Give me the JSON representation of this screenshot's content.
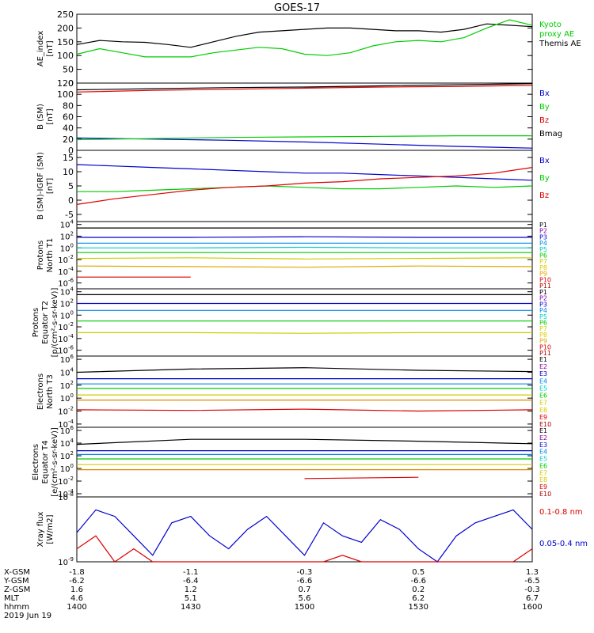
{
  "title": "GOES-17",
  "time_axis": {
    "ticks": [
      "1400",
      "1430",
      "1500",
      "1530",
      "1600"
    ],
    "minutes_range": [
      0,
      120
    ],
    "rows": [
      {
        "label": "X-GSM",
        "values": [
          "-1.8",
          "-1.1",
          "-0.3",
          "0.5",
          "1.3"
        ]
      },
      {
        "label": "Y-GSM",
        "values": [
          "-6.2",
          "-6.4",
          "-6.6",
          "-6.6",
          "-6.5"
        ]
      },
      {
        "label": "Z-GSM",
        "values": [
          "1.6",
          "1.2",
          "0.7",
          "0.2",
          "-0.3"
        ]
      },
      {
        "label": "MLT",
        "values": [
          "4.6",
          "5.1",
          "5.6",
          "6.2",
          "6.7"
        ]
      },
      {
        "label": "hhmm",
        "values": [
          "1400",
          "1430",
          "1500",
          "1530",
          "1600"
        ]
      }
    ],
    "date": "2019 Jun 19"
  },
  "colors": {
    "black": "#000000",
    "red": "#dd0000",
    "green": "#00cc00",
    "blue": "#0000cc"
  },
  "chart_data": [
    {
      "type": "line",
      "id": "ae",
      "ylabel": [
        "AE_index",
        "[nT]"
      ],
      "ylim": [
        0,
        250
      ],
      "yticks": [
        "0",
        "50",
        "100",
        "150",
        "200",
        "250"
      ],
      "x": [
        0,
        6,
        12,
        18,
        24,
        30,
        36,
        42,
        48,
        54,
        60,
        66,
        72,
        78,
        84,
        90,
        96,
        102,
        108,
        114,
        120
      ],
      "series": [
        {
          "name": "Themis AE",
          "color": "#000000",
          "values": [
            140,
            155,
            150,
            148,
            140,
            130,
            150,
            170,
            185,
            190,
            195,
            200,
            200,
            195,
            190,
            190,
            185,
            195,
            215,
            210,
            205
          ]
        },
        {
          "name": "Kyoto\nproxy AE",
          "color": "#00cc00",
          "values": [
            105,
            125,
            110,
            95,
            95,
            95,
            110,
            120,
            130,
            125,
            105,
            100,
            110,
            135,
            150,
            155,
            150,
            165,
            200,
            230,
            210
          ]
        }
      ],
      "legend": [
        {
          "text": "Kyoto",
          "color": "#00cc00"
        },
        {
          "text": "proxy AE",
          "color": "#00cc00"
        },
        {
          "text": "Themis AE",
          "color": "#000000"
        }
      ]
    },
    {
      "type": "line",
      "id": "bsm",
      "ylabel": [
        "B (SM)",
        "[nT]"
      ],
      "ylim": [
        0,
        120
      ],
      "yticks": [
        "0",
        "20",
        "40",
        "60",
        "80",
        "100",
        "120"
      ],
      "x": [
        0,
        20,
        40,
        60,
        80,
        100,
        120
      ],
      "series": [
        {
          "name": "Bx",
          "color": "#0000cc",
          "values": [
            22,
            20,
            18,
            15,
            11,
            7,
            4
          ]
        },
        {
          "name": "By",
          "color": "#00cc00",
          "values": [
            19,
            21,
            23,
            24,
            25,
            26,
            26
          ]
        },
        {
          "name": "Bz",
          "color": "#dd0000",
          "values": [
            104,
            107,
            109,
            111,
            113,
            114,
            116
          ]
        },
        {
          "name": "Bmag",
          "color": "#000000",
          "values": [
            108,
            110,
            112,
            113,
            115,
            117,
            119
          ]
        }
      ],
      "legend": [
        {
          "text": "Bx",
          "color": "#0000cc"
        },
        {
          "text": "By",
          "color": "#00cc00"
        },
        {
          "text": "Bz",
          "color": "#dd0000"
        },
        {
          "text": "Bmag",
          "color": "#000000"
        }
      ]
    },
    {
      "type": "line",
      "id": "bigrf",
      "ylabel": [
        "B (SM)-IGRF (SM)",
        "[nT]"
      ],
      "ylim": [
        -7.5,
        17.5
      ],
      "yticks": [
        "-5",
        "0",
        "5",
        "10",
        "15"
      ],
      "ytick_values": [
        -5,
        0,
        5,
        10,
        15
      ],
      "x": [
        0,
        10,
        20,
        30,
        40,
        50,
        60,
        70,
        80,
        90,
        100,
        110,
        120
      ],
      "series": [
        {
          "name": "Bx",
          "color": "#0000cc",
          "values": [
            12.5,
            12,
            11.5,
            11,
            10.5,
            10,
            9.5,
            9.5,
            9,
            8.5,
            8,
            7.5,
            7
          ]
        },
        {
          "name": "By",
          "color": "#00cc00",
          "values": [
            3,
            3,
            3.5,
            4,
            4.5,
            5,
            4.5,
            4,
            4,
            4.5,
            5,
            4.5,
            5
          ]
        },
        {
          "name": "Bz",
          "color": "#dd0000",
          "values": [
            -1.5,
            0.5,
            2,
            3.5,
            4.5,
            5,
            6,
            6.5,
            7.5,
            8,
            8.5,
            9.5,
            11.5
          ]
        }
      ],
      "legend": [
        {
          "text": "Bx",
          "color": "#0000cc"
        },
        {
          "text": "By",
          "color": "#00cc00"
        },
        {
          "text": "Bz",
          "color": "#dd0000"
        }
      ]
    },
    {
      "type": "line",
      "id": "pn",
      "log": true,
      "ylabel": [
        "Protons",
        "North T1"
      ],
      "ylim": [
        -7,
        4.5
      ],
      "yticks": [
        "10^4",
        "10^2",
        "10^0",
        "10^-2",
        "10^-4",
        "10^-6"
      ],
      "ytick_values": [
        4,
        2,
        0,
        -2,
        -4,
        -6
      ],
      "x": [
        0,
        30,
        60,
        90,
        120
      ],
      "series": [
        {
          "name": "P1",
          "color": "#000000",
          "values": [
            3.4,
            3.4,
            3.4,
            3.4,
            3.4
          ]
        },
        {
          "name": "P3",
          "color": "#0000cc",
          "values": [
            1.8,
            1.8,
            1.9,
            1.8,
            1.8
          ]
        },
        {
          "name": "P4",
          "color": "#0088ee",
          "values": [
            0.8,
            0.8,
            0.8,
            0.8,
            0.8
          ]
        },
        {
          "name": "P5",
          "color": "#00cccc",
          "values": [
            0,
            0,
            0.1,
            0,
            0
          ]
        },
        {
          "name": "P6",
          "color": "#00cc00",
          "values": [
            -0.8,
            -0.8,
            -0.8,
            -0.8,
            -0.8
          ]
        },
        {
          "name": "P7",
          "color": "#cccc00",
          "values": [
            -1.8,
            -1.7,
            -1.9,
            -1.8,
            -1.7
          ]
        },
        {
          "name": "P9",
          "color": "#ddaa00",
          "values": [
            -3.1,
            -3.2,
            -3.3,
            -3.1,
            -3.2
          ]
        },
        {
          "name": "P10",
          "color": "#dd0000",
          "values": [
            -5,
            -5,
            null,
            null,
            null
          ]
        }
      ],
      "legend": [
        {
          "text": "P1",
          "color": "#000000"
        },
        {
          "text": "P2",
          "color": "#8800aa"
        },
        {
          "text": "P3",
          "color": "#0000cc"
        },
        {
          "text": "P4",
          "color": "#0088ee"
        },
        {
          "text": "P5",
          "color": "#00cccc"
        },
        {
          "text": "P6",
          "color": "#00cc00"
        },
        {
          "text": "P7",
          "color": "#cccc00"
        },
        {
          "text": "P8",
          "color": "#ddcc00"
        },
        {
          "text": "P9",
          "color": "#ddaa00"
        },
        {
          "text": "P10",
          "color": "#dd0000"
        },
        {
          "text": "P11",
          "color": "#aa0000"
        }
      ]
    },
    {
      "type": "line",
      "id": "pe",
      "log": true,
      "ylabel": [
        "Protons",
        "Equator T2",
        "[p/(cm²-s-sr-keV)]"
      ],
      "ylim": [
        -7,
        4.5
      ],
      "yticks": [
        "10^4",
        "10^2",
        "10^0",
        "10^-2",
        "10^-4",
        "10^-6"
      ],
      "ytick_values": [
        4,
        2,
        0,
        -2,
        -4,
        -6
      ],
      "x": [
        0,
        30,
        60,
        90,
        120
      ],
      "series": [
        {
          "name": "P1",
          "color": "#000000",
          "values": [
            3.5,
            3.5,
            3.5,
            3.5,
            3.5
          ]
        },
        {
          "name": "P3",
          "color": "#0000cc",
          "values": [
            2,
            2,
            2,
            2,
            2
          ]
        },
        {
          "name": "P4",
          "color": "#0088ee",
          "values": [
            0.8,
            0.8,
            0.8,
            0.8,
            0.8
          ]
        },
        {
          "name": "P6",
          "color": "#00cc00",
          "values": [
            -1,
            -1,
            -1,
            -1,
            -1
          ]
        },
        {
          "name": "P7",
          "color": "#cccc00",
          "values": [
            -3,
            -3,
            -3.1,
            -3,
            -3
          ]
        }
      ],
      "legend": [
        {
          "text": "P1",
          "color": "#000000"
        },
        {
          "text": "P2",
          "color": "#8800aa"
        },
        {
          "text": "P3",
          "color": "#0000cc"
        },
        {
          "text": "P4",
          "color": "#0088ee"
        },
        {
          "text": "P5",
          "color": "#00cccc"
        },
        {
          "text": "P6",
          "color": "#00cc00"
        },
        {
          "text": "P7",
          "color": "#cccc00"
        },
        {
          "text": "P8",
          "color": "#ddcc00"
        },
        {
          "text": "P9",
          "color": "#ddaa00"
        },
        {
          "text": "P10",
          "color": "#dd0000"
        },
        {
          "text": "P11",
          "color": "#aa0000"
        }
      ]
    },
    {
      "type": "line",
      "id": "en",
      "log": true,
      "ylabel": [
        "Electrons",
        "North T3"
      ],
      "ylim": [
        -4.5,
        6.5
      ],
      "yticks": [
        "10^6",
        "10^4",
        "10^2",
        "10^0",
        "10^-2",
        "10^-4"
      ],
      "ytick_values": [
        6,
        4,
        2,
        0,
        -2,
        -4
      ],
      "x": [
        0,
        30,
        60,
        90,
        120
      ],
      "series": [
        {
          "name": "E1",
          "color": "#000000",
          "values": [
            4,
            4.5,
            4.7,
            4.3,
            4.1
          ]
        },
        {
          "name": "E3",
          "color": "#0000cc",
          "values": [
            3,
            3,
            3,
            3,
            3
          ]
        },
        {
          "name": "E4",
          "color": "#0088ee",
          "values": [
            2.2,
            2.2,
            2.2,
            2.2,
            2.2
          ]
        },
        {
          "name": "E6",
          "color": "#00cc00",
          "values": [
            1.5,
            1.5,
            1.5,
            1.5,
            1.5
          ]
        },
        {
          "name": "E7",
          "color": "#cccc00",
          "values": [
            0.5,
            0.5,
            0.5,
            0.5,
            0.5
          ]
        },
        {
          "name": "E8",
          "color": "#dd8800",
          "values": [
            -0.3,
            -0.3,
            -0.3,
            -0.3,
            -0.3
          ]
        },
        {
          "name": "E9",
          "color": "#dd0000",
          "values": [
            -1.8,
            -1.9,
            -1.7,
            -2,
            -1.8
          ]
        }
      ],
      "legend": [
        {
          "text": "E1",
          "color": "#000000"
        },
        {
          "text": "E2",
          "color": "#8800aa"
        },
        {
          "text": "E3",
          "color": "#0000cc"
        },
        {
          "text": "E4",
          "color": "#0088ee"
        },
        {
          "text": "E5",
          "color": "#00cccc"
        },
        {
          "text": "E6",
          "color": "#00cc00"
        },
        {
          "text": "E7",
          "color": "#cccc00"
        },
        {
          "text": "E8",
          "color": "#ddcc00"
        },
        {
          "text": "E9",
          "color": "#dd0000"
        },
        {
          "text": "E10",
          "color": "#aa0000"
        }
      ]
    },
    {
      "type": "line",
      "id": "ee",
      "log": true,
      "ylabel": [
        "Electrons",
        "Equator T4",
        "[e/(cm²-s-sr-keV)]"
      ],
      "ylim": [
        -4.5,
        6.5
      ],
      "yticks": [
        "10^6",
        "10^4",
        "10^2",
        "10^0",
        "10^-2",
        "10^-4"
      ],
      "ytick_values": [
        6,
        4,
        2,
        0,
        -2,
        -4
      ],
      "x": [
        0,
        30,
        60,
        90,
        120
      ],
      "series": [
        {
          "name": "E1",
          "color": "#000000",
          "values": [
            3.8,
            4.6,
            4.6,
            4.3,
            3.9
          ]
        },
        {
          "name": "E3",
          "color": "#0000cc",
          "values": [
            2.8,
            2.8,
            2.8,
            2.8,
            2.8
          ]
        },
        {
          "name": "E4",
          "color": "#0088ee",
          "values": [
            2.2,
            2.2,
            2.2,
            2.2,
            2.2
          ]
        },
        {
          "name": "E6",
          "color": "#00cc00",
          "values": [
            1.5,
            1.5,
            1.5,
            1.5,
            1.5
          ]
        },
        {
          "name": "E7",
          "color": "#cccc00",
          "values": [
            0.6,
            0.6,
            0.6,
            0.6,
            0.6
          ]
        },
        {
          "name": "E8",
          "color": "#dd8800",
          "values": [
            -0.2,
            -0.2,
            -0.2,
            -0.2,
            -0.2
          ]
        },
        {
          "name": "E9",
          "color": "#dd0000",
          "values": [
            -1.5,
            null,
            -1.6,
            -1.4,
            null
          ]
        }
      ],
      "legend": [
        {
          "text": "E1",
          "color": "#000000"
        },
        {
          "text": "E2",
          "color": "#8800aa"
        },
        {
          "text": "E3",
          "color": "#0000cc"
        },
        {
          "text": "E4",
          "color": "#0088ee"
        },
        {
          "text": "E5",
          "color": "#00cccc"
        },
        {
          "text": "E6",
          "color": "#00cc00"
        },
        {
          "text": "E7",
          "color": "#cccc00"
        },
        {
          "text": "E8",
          "color": "#ddcc00"
        },
        {
          "text": "E9",
          "color": "#dd0000"
        },
        {
          "text": "E10",
          "color": "#aa0000"
        }
      ]
    },
    {
      "type": "line",
      "id": "xray",
      "log": true,
      "ylabel": [
        "Xray flux",
        "[W/m2]"
      ],
      "ylim": [
        -9,
        -8
      ],
      "yticks": [
        "10^-8",
        "10^-9"
      ],
      "ytick_values": [
        -8,
        -9
      ],
      "x": [
        0,
        5,
        10,
        15,
        20,
        25,
        30,
        35,
        40,
        45,
        50,
        55,
        60,
        65,
        70,
        75,
        80,
        85,
        90,
        95,
        100,
        105,
        110,
        115,
        120
      ],
      "series": [
        {
          "name": "0.05-0.4 nm",
          "color": "#0000cc",
          "values": [
            -8.55,
            -8.2,
            -8.3,
            -8.6,
            -8.9,
            -8.4,
            -8.3,
            -8.6,
            -8.8,
            -8.5,
            -8.3,
            -8.6,
            -8.9,
            -8.4,
            -8.6,
            -8.7,
            -8.35,
            -8.5,
            -8.8,
            -9.0,
            -8.6,
            -8.4,
            -8.3,
            -8.2,
            -8.5
          ]
        },
        {
          "name": "0.1-0.8 nm",
          "color": "#dd0000",
          "values": [
            -8.8,
            -8.6,
            -9.0,
            -8.8,
            -9.0,
            -9.0,
            -9.0,
            -9.0,
            -9.0,
            -9.0,
            -9.0,
            -9.0,
            -9.0,
            -9.0,
            -8.9,
            -9.0,
            -9.0,
            -9.0,
            -9.0,
            -9.0,
            -9.0,
            -9.0,
            -9.0,
            -9.0,
            -8.8
          ]
        }
      ],
      "legend": [
        {
          "text": "0.1-0.8 nm",
          "color": "#dd0000"
        },
        {
          "text": "0.05-0.4 nm",
          "color": "#0000cc"
        }
      ]
    }
  ]
}
